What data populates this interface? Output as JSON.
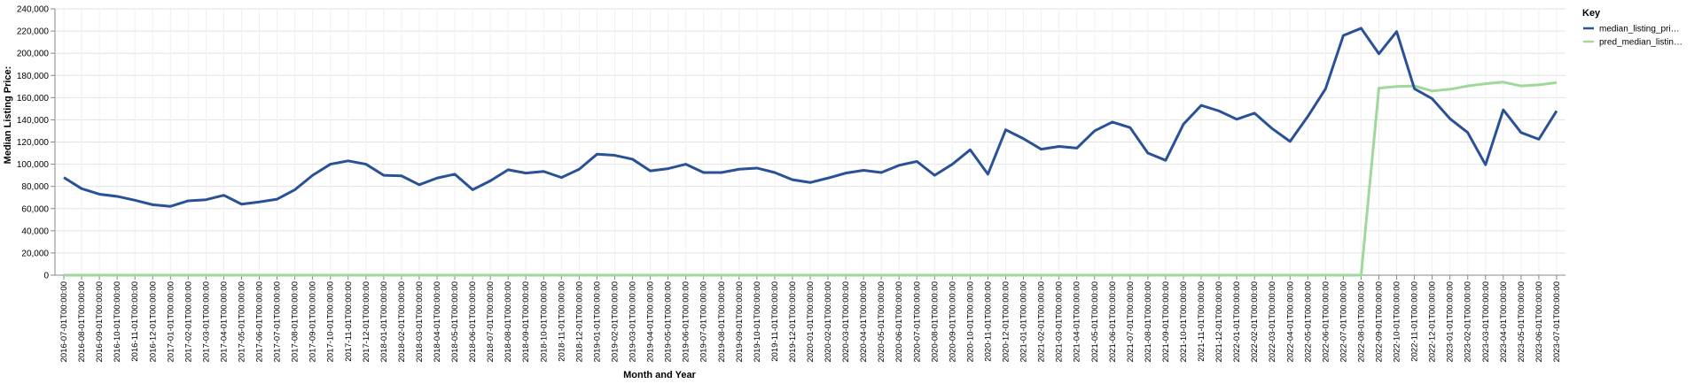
{
  "chart_data": {
    "type": "line",
    "x_label": "Month and Year",
    "y_label": "Median Listing Price:",
    "legend_title": "Key",
    "legend": "right",
    "grid": true,
    "categories": [
      "2016-07-01T00:00:00",
      "2016-08-01T00:00:00",
      "2016-09-01T00:00:00",
      "2016-10-01T00:00:00",
      "2016-11-01T00:00:00",
      "2016-12-01T00:00:00",
      "2017-01-01T00:00:00",
      "2017-02-01T00:00:00",
      "2017-03-01T00:00:00",
      "2017-04-01T00:00:00",
      "2017-05-01T00:00:00",
      "2017-06-01T00:00:00",
      "2017-07-01T00:00:00",
      "2017-08-01T00:00:00",
      "2017-09-01T00:00:00",
      "2017-10-01T00:00:00",
      "2017-11-01T00:00:00",
      "2017-12-01T00:00:00",
      "2018-01-01T00:00:00",
      "2018-02-01T00:00:00",
      "2018-03-01T00:00:00",
      "2018-04-01T00:00:00",
      "2018-05-01T00:00:00",
      "2018-06-01T00:00:00",
      "2018-07-01T00:00:00",
      "2018-08-01T00:00:00",
      "2018-09-01T00:00:00",
      "2018-10-01T00:00:00",
      "2018-11-01T00:00:00",
      "2018-12-01T00:00:00",
      "2019-01-01T00:00:00",
      "2019-02-01T00:00:00",
      "2019-03-01T00:00:00",
      "2019-04-01T00:00:00",
      "2019-05-01T00:00:00",
      "2019-06-01T00:00:00",
      "2019-07-01T00:00:00",
      "2019-08-01T00:00:00",
      "2019-09-01T00:00:00",
      "2019-10-01T00:00:00",
      "2019-11-01T00:00:00",
      "2019-12-01T00:00:00",
      "2020-01-01T00:00:00",
      "2020-02-01T00:00:00",
      "2020-03-01T00:00:00",
      "2020-04-01T00:00:00",
      "2020-05-01T00:00:00",
      "2020-06-01T00:00:00",
      "2020-07-01T00:00:00",
      "2020-08-01T00:00:00",
      "2020-09-01T00:00:00",
      "2020-10-01T00:00:00",
      "2020-11-01T00:00:00",
      "2020-12-01T00:00:00",
      "2021-01-01T00:00:00",
      "2021-02-01T00:00:00",
      "2021-03-01T00:00:00",
      "2021-04-01T00:00:00",
      "2021-05-01T00:00:00",
      "2021-06-01T00:00:00",
      "2021-07-01T00:00:00",
      "2021-08-01T00:00:00",
      "2021-09-01T00:00:00",
      "2021-10-01T00:00:00",
      "2021-11-01T00:00:00",
      "2021-12-01T00:00:00",
      "2022-01-01T00:00:00",
      "2022-02-01T00:00:00",
      "2022-03-01T00:00:00",
      "2022-04-01T00:00:00",
      "2022-05-01T00:00:00",
      "2022-06-01T00:00:00",
      "2022-07-01T00:00:00",
      "2022-08-01T00:00:00",
      "2022-09-01T00:00:00",
      "2022-10-01T00:00:00",
      "2022-11-01T00:00:00",
      "2022-12-01T00:00:00",
      "2023-01-01T00:00:00",
      "2023-02-01T00:00:00",
      "2023-03-01T00:00:00",
      "2023-04-01T00:00:00",
      "2023-05-01T00:00:00",
      "2023-06-01T00:00:00",
      "2023-07-01T00:00:00"
    ],
    "series": [
      {
        "name": "median_listing_pri…",
        "color": "#2a5197",
        "values": [
          88000,
          78000,
          73000,
          71000,
          67500,
          63500,
          62000,
          67000,
          68000,
          72000,
          64000,
          66000,
          68500,
          77000,
          90000,
          100000,
          103000,
          100000,
          90000,
          89500,
          81500,
          87500,
          91000,
          77000,
          85000,
          95000,
          92000,
          93500,
          88000,
          95500,
          109000,
          108000,
          104500,
          94000,
          96000,
          100000,
          92500,
          92500,
          95500,
          96500,
          92500,
          86000,
          83500,
          87500,
          92000,
          94500,
          92500,
          99000,
          102500,
          90000,
          100000,
          113000,
          91000,
          131000,
          123000,
          113500,
          116000,
          114500,
          130000,
          138000,
          133000,
          110000,
          103500,
          136000,
          153000,
          148000,
          140500,
          146000,
          132000,
          120500,
          143000,
          168000,
          216000,
          222500,
          199500,
          219500,
          168000,
          159000,
          141000,
          128500,
          99500,
          149000,
          128500,
          122500,
          148000
        ]
      },
      {
        "name": "pred_median_listin…",
        "color": "#9ed89a",
        "values": [
          0,
          0,
          0,
          0,
          0,
          0,
          0,
          0,
          0,
          0,
          0,
          0,
          0,
          0,
          0,
          0,
          0,
          0,
          0,
          0,
          0,
          0,
          0,
          0,
          0,
          0,
          0,
          0,
          0,
          0,
          0,
          0,
          0,
          0,
          0,
          0,
          0,
          0,
          0,
          0,
          0,
          0,
          0,
          0,
          0,
          0,
          0,
          0,
          0,
          0,
          0,
          0,
          0,
          0,
          0,
          0,
          0,
          0,
          0,
          0,
          0,
          0,
          0,
          0,
          0,
          0,
          0,
          0,
          0,
          0,
          0,
          0,
          0,
          0,
          168500,
          170000,
          170500,
          166000,
          167500,
          170500,
          172500,
          174000,
          170500,
          171500,
          173500
        ]
      }
    ],
    "ylim": [
      0,
      240000
    ],
    "yticks": [
      0,
      {
        "value": 20000,
        "label": "20,000"
      },
      {
        "value": 40000,
        "label": "40,000"
      },
      {
        "value": 60000,
        "label": "60,000"
      },
      {
        "value": 80000,
        "label": "80,000"
      },
      {
        "value": 100000,
        "label": "100,000"
      },
      {
        "value": 120000,
        "label": "120,000"
      },
      {
        "value": 140000,
        "label": "140,000"
      },
      {
        "value": 160000,
        "label": "160,000"
      },
      {
        "value": 180000,
        "label": "180,000"
      },
      {
        "value": 200000,
        "label": "200,000"
      },
      {
        "value": 220000,
        "label": "220,000"
      },
      {
        "value": 240000,
        "label": "240,000"
      }
    ]
  }
}
